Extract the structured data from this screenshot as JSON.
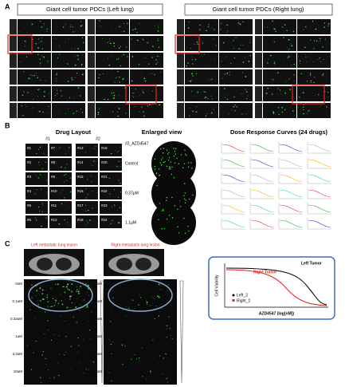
{
  "panel_a": {
    "label": "A",
    "left_title": "Giant cell tumor PDCs  (Left lung)",
    "right_title": "Giant cell tumor PDCs  (Right lung)"
  },
  "panel_b": {
    "label": "B",
    "drug_layout": {
      "title": "Drug Layout",
      "plates": [
        "#1",
        "#2"
      ],
      "wells": [
        "#1",
        "#2",
        "#3",
        "#4",
        "#5",
        "#6",
        "#7",
        "#8",
        "#9",
        "#10",
        "#11",
        "#12",
        "#13",
        "#14",
        "#15",
        "#16",
        "#17",
        "#18",
        "#19",
        "#20",
        "#21",
        "#22",
        "#23",
        "#24"
      ]
    },
    "enlarged_view": {
      "title": "Enlarged view",
      "drug": "#2_AZD4547",
      "conditions": [
        "Control",
        "0.37µM",
        "1.1µM"
      ]
    },
    "dose_response": {
      "title": "Dose Response Curves (24 drugs)"
    }
  },
  "panel_c": {
    "label": "C",
    "left_title": "Left metastatic lung lesion",
    "right_title": "Right metastatic lung lesion",
    "concentrations": [
      "0nM",
      "0.1uM",
      "0.33uM",
      "1uM",
      "3.3uM",
      "10uM"
    ],
    "inset": {
      "y_label": "Cell Viability",
      "x_label": "AZD4547 (log[nM])",
      "left_tumor": "Left Tumor",
      "right_tumor": "Right Tumor",
      "legend": [
        "Left_2",
        "Right_2"
      ]
    }
  }
}
